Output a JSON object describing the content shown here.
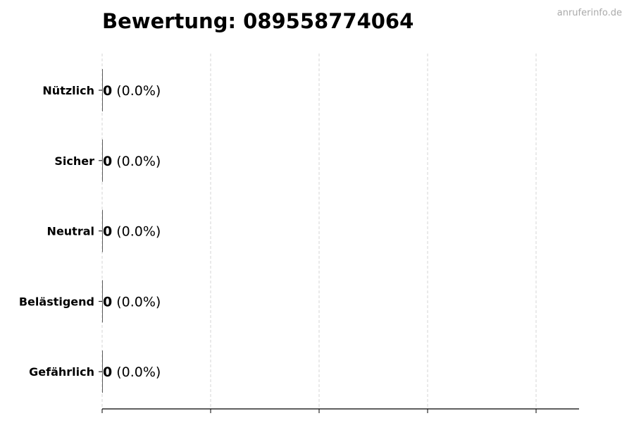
{
  "watermark": "anruferinfo.de",
  "chart_data": {
    "type": "bar",
    "orientation": "horizontal",
    "title": "Bewertung: 089558774064",
    "categories": [
      "Nützlich",
      "Sicher",
      "Neutral",
      "Belästigend",
      "Gefährlich"
    ],
    "values": [
      0,
      0,
      0,
      0,
      0
    ],
    "data_labels": [
      {
        "count": "0",
        "percent": "(0.0%)"
      },
      {
        "count": "0",
        "percent": "(0.0%)"
      },
      {
        "count": "0",
        "percent": "(0.0%)"
      },
      {
        "count": "0",
        "percent": "(0.0%)"
      },
      {
        "count": "0",
        "percent": "(0.0%)"
      }
    ],
    "xlabel": "",
    "ylabel": "",
    "x_tick_labels_shown": false,
    "grid": "x dashed",
    "bar_color": "#333333"
  }
}
